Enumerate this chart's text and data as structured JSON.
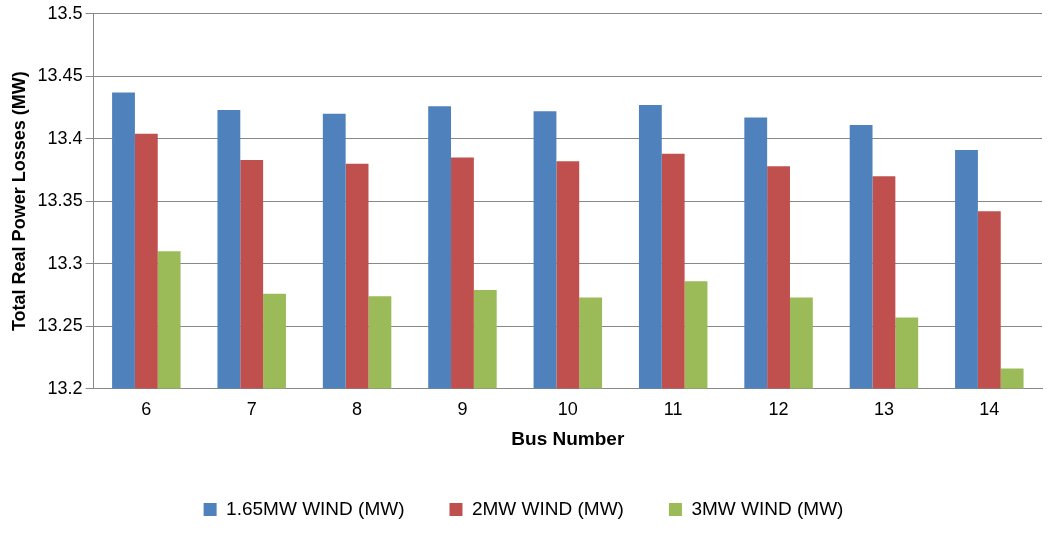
{
  "chart_data": {
    "type": "bar",
    "xlabel": "Bus Number",
    "ylabel": "Total Real Power Losses (MW)",
    "categories": [
      "6",
      "7",
      "8",
      "9",
      "10",
      "11",
      "12",
      "13",
      "14"
    ],
    "series": [
      {
        "name": "1.65MW WIND (MW)",
        "color": "#4f81bd",
        "values": [
          13.437,
          13.423,
          13.42,
          13.426,
          13.422,
          13.427,
          13.417,
          13.411,
          13.391
        ]
      },
      {
        "name": "2MW WIND (MW)",
        "color": "#c0504d",
        "values": [
          13.404,
          13.383,
          13.38,
          13.385,
          13.382,
          13.388,
          13.378,
          13.37,
          13.342
        ]
      },
      {
        "name": "3MW WIND (MW)",
        "color": "#9bbb59",
        "values": [
          13.31,
          13.276,
          13.274,
          13.279,
          13.273,
          13.286,
          13.273,
          13.257,
          13.216
        ]
      }
    ],
    "ylim": [
      13.2,
      13.5
    ],
    "yticks": [
      13.2,
      13.25,
      13.3,
      13.35,
      13.4,
      13.45,
      13.5
    ],
    "grid": "y",
    "legend": "bottom"
  }
}
